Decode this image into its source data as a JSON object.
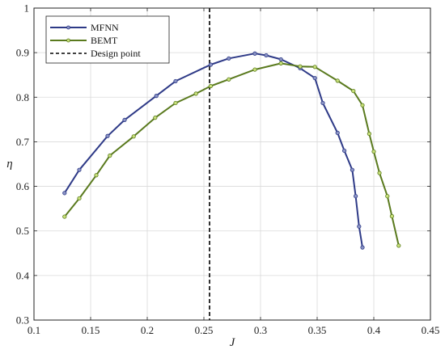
{
  "chart_data": {
    "type": "line",
    "xlabel": "J",
    "ylabel": "η",
    "xlim": [
      0.1,
      0.45
    ],
    "ylim": [
      0.3,
      1.0
    ],
    "xticks": [
      0.1,
      0.15,
      0.2,
      0.25,
      0.3,
      0.35,
      0.4,
      0.45
    ],
    "yticks": [
      0.3,
      0.4,
      0.5,
      0.6,
      0.7,
      0.8,
      0.9,
      1.0
    ],
    "xtick_labels": [
      "0.1",
      "0.15",
      "0.2",
      "0.25",
      "0.3",
      "0.35",
      "0.4",
      "0.45"
    ],
    "ytick_labels": [
      "0.3",
      "0.4",
      "0.5",
      "0.6",
      "0.7",
      "0.8",
      "0.9",
      "1"
    ],
    "grid": true,
    "legend_position": "top-left",
    "series": [
      {
        "name": "MFNN",
        "color": "#2e3a87",
        "x": [
          0.127,
          0.14,
          0.165,
          0.18,
          0.208,
          0.225,
          0.256,
          0.272,
          0.295,
          0.305,
          0.318,
          0.335,
          0.348,
          0.355,
          0.368,
          0.374,
          0.381,
          0.384,
          0.387,
          0.39
        ],
        "y": [
          0.585,
          0.637,
          0.713,
          0.749,
          0.803,
          0.836,
          0.873,
          0.887,
          0.898,
          0.894,
          0.885,
          0.865,
          0.843,
          0.787,
          0.72,
          0.68,
          0.637,
          0.578,
          0.51,
          0.463
        ]
      },
      {
        "name": "BEMT",
        "color": "#5a7a1e",
        "x": [
          0.127,
          0.14,
          0.155,
          0.167,
          0.188,
          0.207,
          0.225,
          0.243,
          0.256,
          0.272,
          0.295,
          0.318,
          0.335,
          0.348,
          0.368,
          0.382,
          0.39,
          0.396,
          0.4,
          0.405,
          0.412,
          0.416,
          0.422
        ],
        "y": [
          0.532,
          0.573,
          0.625,
          0.669,
          0.712,
          0.754,
          0.787,
          0.808,
          0.825,
          0.84,
          0.862,
          0.876,
          0.869,
          0.868,
          0.837,
          0.814,
          0.782,
          0.718,
          0.678,
          0.63,
          0.578,
          0.533,
          0.467
        ]
      }
    ],
    "reference_line": {
      "name": "Design point",
      "x": 0.255,
      "color": "#000000",
      "style": "dashed"
    }
  }
}
